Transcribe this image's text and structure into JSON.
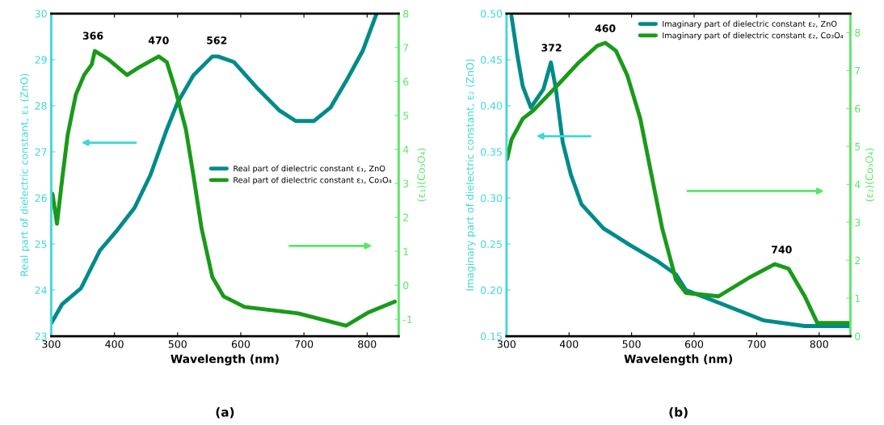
{
  "chart_data": [
    {
      "type": "line",
      "title": "(a)",
      "xlabel": "Wavelength (nm)",
      "ylabel": "Real part of dielectric constant, ε₁ (ZnO)",
      "y2label": "(ε₁)(Co₃O₄)",
      "xlim": [
        300,
        850
      ],
      "xticks": [
        300,
        400,
        500,
        600,
        700,
        800
      ],
      "ylim": [
        23,
        30
      ],
      "yticks": [
        23,
        24,
        25,
        26,
        27,
        28,
        29,
        30
      ],
      "y2lim": [
        -1.5,
        8
      ],
      "y2ticks": [
        -1,
        0,
        1,
        2,
        3,
        4,
        5,
        6,
        7,
        8
      ],
      "legend": "right",
      "grid": false,
      "series": [
        {
          "name": "Real part of dielectric constant ε₁, ZnO",
          "color": "#008b8b",
          "x": [
            300,
            317,
            347,
            377,
            402,
            432,
            457,
            483,
            500,
            525,
            555,
            564,
            589,
            627,
            661,
            687,
            716,
            742,
            767,
            793,
            815
          ],
          "values": [
            23.28,
            23.69,
            24.04,
            24.86,
            25.26,
            25.79,
            26.5,
            27.49,
            28.07,
            28.66,
            29.07,
            29.07,
            28.95,
            28.37,
            27.9,
            27.67,
            27.67,
            27.96,
            28.54,
            29.19,
            30
          ]
        },
        {
          "name": "Real part of dielectric constant ε₁, Co₃O₄",
          "color": "#1a9a1a",
          "axis": "y2",
          "x": [
            302,
            309,
            318,
            326,
            339,
            352,
            364,
            369,
            389,
            420,
            440,
            470,
            483,
            496,
            513,
            525,
            538,
            555,
            573,
            606,
            691,
            767,
            801,
            844
          ],
          "values": [
            2.69,
            1.81,
            3.24,
            4.43,
            5.62,
            6.19,
            6.5,
            6.9,
            6.67,
            6.19,
            6.43,
            6.74,
            6.57,
            5.79,
            4.6,
            3.24,
            1.67,
            0.24,
            -0.33,
            -0.64,
            -0.83,
            -1.19,
            -0.81,
            -0.48
          ]
        }
      ],
      "annotations": [
        {
          "text": "366",
          "x": 366,
          "y": 29.2
        },
        {
          "text": "470",
          "x": 470,
          "y": 29.1
        },
        {
          "text": "562",
          "x": 562,
          "y": 29.1
        }
      ]
    },
    {
      "type": "line",
      "title": "(b)",
      "xlabel": "Wavelength (nm)",
      "ylabel": "Imaginary part of dielectric constant, ε₂ (ZnO)",
      "y2label": "(ε₂)(Co₃O₄)",
      "xlim": [
        300,
        850
      ],
      "xticks": [
        300,
        400,
        500,
        600,
        700,
        800
      ],
      "ylim": [
        0.15,
        0.5
      ],
      "yticks": [
        {
          "value": 0.15,
          "label": "0.15"
        },
        {
          "value": 0.2,
          "label": "0.20"
        },
        {
          "value": 0.25,
          "label": "0.25"
        },
        {
          "value": 0.3,
          "label": "0.30"
        },
        {
          "value": 0.35,
          "label": "0.35"
        },
        {
          "value": 0.4,
          "label": "0.40"
        },
        {
          "value": 0.45,
          "label": "0.45"
        },
        {
          "value": 0.5,
          "label": "0.50"
        }
      ],
      "y2lim": [
        0,
        8.5
      ],
      "y2ticks": [
        0,
        1,
        2,
        3,
        4,
        5,
        6,
        7,
        8
      ],
      "legend": "top right",
      "grid": false,
      "series": [
        {
          "name": "Imaginary part of dielectric constant ε₂, ZnO",
          "color": "#008b8b",
          "x": [
            308,
            317,
            326,
            339,
            359,
            371,
            379,
            390,
            403,
            420,
            455,
            497,
            540,
            571,
            587,
            648,
            712,
            777,
            849
          ],
          "values": [
            0.497,
            0.456,
            0.421,
            0.398,
            0.418,
            0.447,
            0.418,
            0.36,
            0.325,
            0.293,
            0.267,
            0.249,
            0.232,
            0.217,
            0.2,
            0.184,
            0.167,
            0.161,
            0.161
          ]
        },
        {
          "name": "Imaginary part of dielectric constant ε₂, Co₃O₄",
          "color": "#1a9a1a",
          "axis": "y2",
          "x": [
            301,
            308,
            326,
            343,
            385,
            416,
            445,
            458,
            475,
            493,
            514,
            532,
            549,
            571,
            587,
            639,
            690,
            729,
            751,
            777,
            797,
            849
          ],
          "values": [
            4.67,
            5.18,
            5.73,
            5.95,
            6.67,
            7.22,
            7.65,
            7.73,
            7.52,
            6.88,
            5.73,
            4.24,
            2.84,
            1.48,
            1.14,
            1.05,
            1.56,
            1.9,
            1.78,
            1.05,
            0.35,
            0.35
          ]
        }
      ],
      "annotations": [
        {
          "text": "372",
          "x": 372,
          "y": 0.447
        },
        {
          "text": "460",
          "x": 458,
          "y": 0.468
        },
        {
          "text": "740",
          "x": 740,
          "y": 0.228
        }
      ]
    }
  ]
}
